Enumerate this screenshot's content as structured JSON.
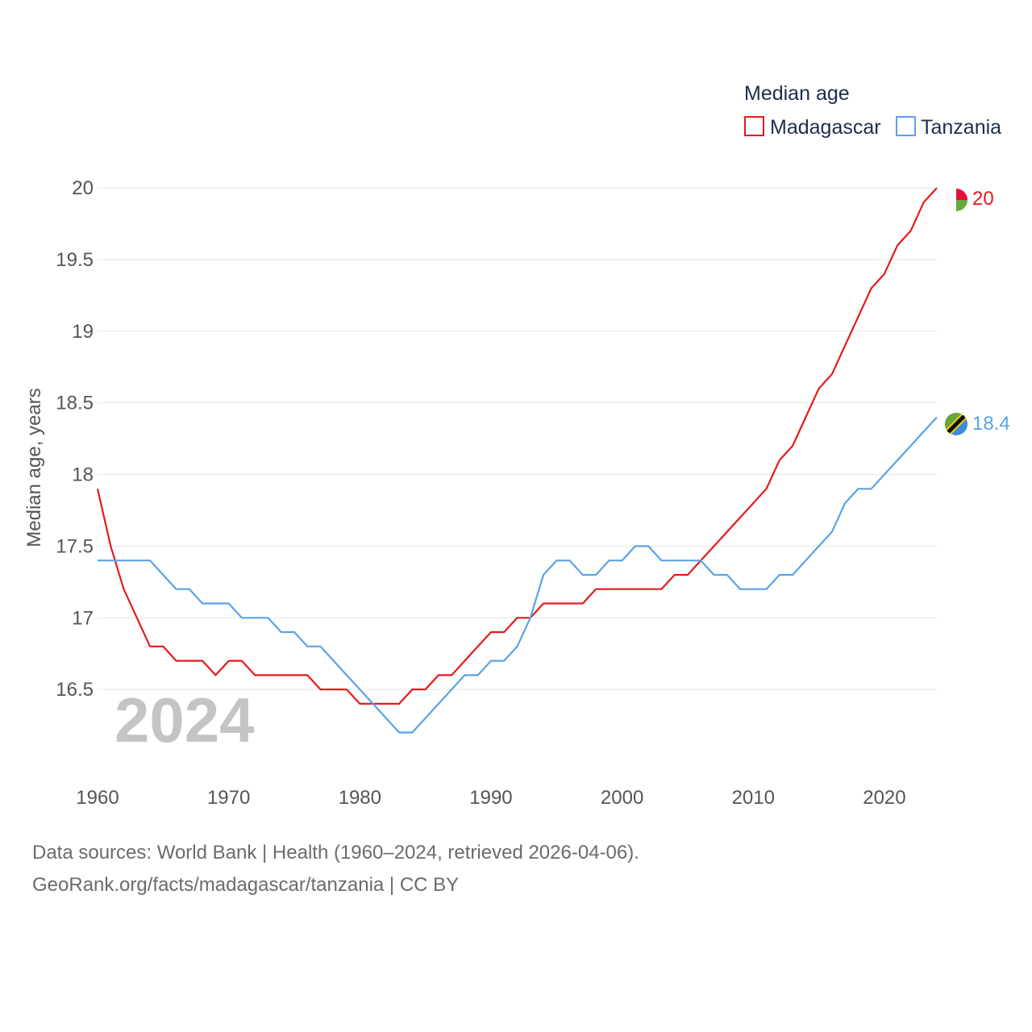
{
  "chart_data": {
    "type": "line",
    "year_label": "2024",
    "ylabel": "Median age, years",
    "ylim": [
      16.0,
      20.4
    ],
    "xlim": [
      1960,
      2024
    ],
    "y_ticks": [
      "16.5",
      "17",
      "17.5",
      "18",
      "18.5",
      "19",
      "19.5",
      "20"
    ],
    "x_ticks": [
      "1960",
      "1970",
      "1980",
      "1990",
      "2000",
      "2010",
      "2020"
    ],
    "legend": {
      "title": "Median age",
      "position": "top-right"
    },
    "x": [
      1960,
      1961,
      1962,
      1963,
      1964,
      1965,
      1966,
      1967,
      1968,
      1969,
      1970,
      1971,
      1972,
      1973,
      1974,
      1975,
      1976,
      1977,
      1978,
      1979,
      1980,
      1981,
      1982,
      1983,
      1984,
      1985,
      1986,
      1987,
      1988,
      1989,
      1990,
      1991,
      1992,
      1993,
      1994,
      1995,
      1996,
      1997,
      1998,
      1999,
      2000,
      2001,
      2002,
      2003,
      2004,
      2005,
      2006,
      2007,
      2008,
      2009,
      2010,
      2011,
      2012,
      2013,
      2014,
      2015,
      2016,
      2017,
      2018,
      2019,
      2020,
      2021,
      2022,
      2023,
      2024
    ],
    "series": [
      {
        "name": "Madagascar",
        "color": "#e41a1c",
        "end_label": "20",
        "values": [
          17.9,
          17.5,
          17.2,
          17.0,
          16.8,
          16.8,
          16.7,
          16.7,
          16.7,
          16.6,
          16.7,
          16.7,
          16.6,
          16.6,
          16.6,
          16.6,
          16.6,
          16.5,
          16.5,
          16.5,
          16.4,
          16.4,
          16.4,
          16.4,
          16.5,
          16.5,
          16.6,
          16.6,
          16.7,
          16.8,
          16.9,
          16.9,
          17.0,
          17.0,
          17.1,
          17.1,
          17.1,
          17.1,
          17.2,
          17.2,
          17.2,
          17.2,
          17.2,
          17.2,
          17.3,
          17.3,
          17.4,
          17.5,
          17.6,
          17.7,
          17.8,
          17.9,
          18.1,
          18.2,
          18.4,
          18.6,
          18.7,
          18.9,
          19.1,
          19.3,
          19.4,
          19.6,
          19.7,
          19.9,
          20.0
        ]
      },
      {
        "name": "Tanzania",
        "color": "#5aa3e6",
        "end_label": "18.4",
        "values": [
          17.4,
          17.4,
          17.4,
          17.4,
          17.4,
          17.3,
          17.2,
          17.2,
          17.1,
          17.1,
          17.1,
          17.0,
          17.0,
          17.0,
          16.9,
          16.9,
          16.8,
          16.8,
          16.7,
          16.6,
          16.5,
          16.4,
          16.3,
          16.2,
          16.2,
          16.3,
          16.4,
          16.5,
          16.6,
          16.6,
          16.7,
          16.7,
          16.8,
          17.0,
          17.3,
          17.4,
          17.4,
          17.3,
          17.3,
          17.4,
          17.4,
          17.5,
          17.5,
          17.4,
          17.4,
          17.4,
          17.4,
          17.3,
          17.3,
          17.2,
          17.2,
          17.2,
          17.3,
          17.3,
          17.4,
          17.5,
          17.6,
          17.8,
          17.9,
          17.9,
          18.0,
          18.1,
          18.2,
          18.3,
          18.4
        ]
      }
    ]
  },
  "footer": {
    "line1": "Data sources: World Bank | Health (1960–2024, retrieved 2026-04-06).",
    "line2": "GeoRank.org/facts/madagascar/tanzania | CC BY"
  }
}
